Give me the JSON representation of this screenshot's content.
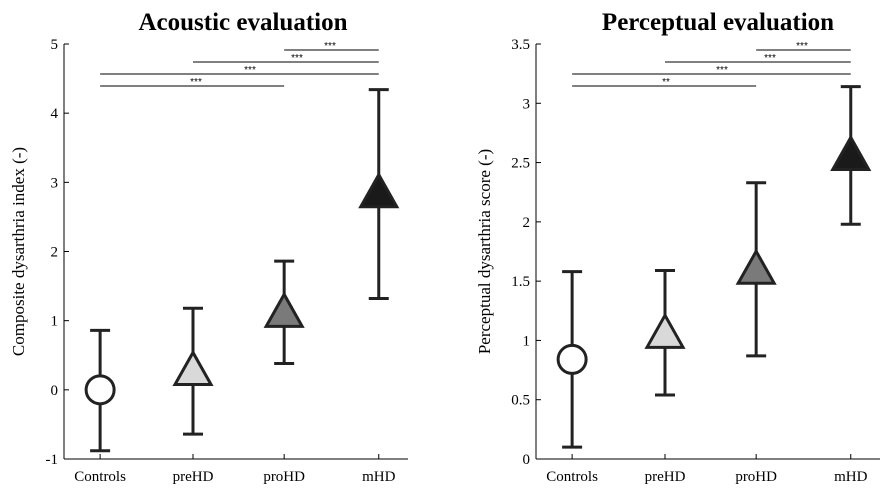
{
  "chart_data": [
    {
      "type": "scatter",
      "title": "Acoustic evaluation",
      "xlabel": "",
      "ylabel": "Composite dysarthria index (-)",
      "categories": [
        "Controls",
        "preHD",
        "proHD",
        "mHD"
      ],
      "ylim": [
        -1,
        5
      ],
      "yticks": [
        "-1",
        "0",
        "1",
        "2",
        "3",
        "4",
        "5"
      ],
      "series": [
        {
          "mean": [
            0.0,
            0.28,
            1.12,
            2.85
          ],
          "lower": [
            -0.88,
            -0.64,
            0.38,
            1.32
          ],
          "upper": [
            0.86,
            1.18,
            1.86,
            4.34
          ],
          "markers": [
            "circle",
            "triangle",
            "triangle",
            "triangle"
          ],
          "fills": [
            "#ffffff",
            "#d9d9d9",
            "#7a7a7a",
            "#1a1a1a"
          ]
        }
      ],
      "significance": [
        {
          "from": "Controls",
          "to": "proHD",
          "label": "***"
        },
        {
          "from": "Controls",
          "to": "mHD",
          "label": "***"
        },
        {
          "from": "preHD",
          "to": "mHD",
          "label": "***"
        },
        {
          "from": "proHD",
          "to": "mHD",
          "label": "***"
        }
      ],
      "grid": false
    },
    {
      "type": "scatter",
      "title": "Perceptual evaluation",
      "xlabel": "",
      "ylabel": "Perceptual dysarthria score (-)",
      "categories": [
        "Controls",
        "preHD",
        "proHD",
        "mHD"
      ],
      "ylim": [
        0,
        3.5
      ],
      "yticks": [
        "0",
        "0.5",
        "1",
        "1.5",
        "2",
        "2.5",
        "3",
        "3.5"
      ],
      "series": [
        {
          "mean": [
            0.84,
            1.06,
            1.6,
            2.56
          ],
          "lower": [
            0.1,
            0.54,
            0.87,
            1.98
          ],
          "upper": [
            1.58,
            1.59,
            2.33,
            3.14
          ],
          "markers": [
            "circle",
            "triangle",
            "triangle",
            "triangle"
          ],
          "fills": [
            "#ffffff",
            "#d9d9d9",
            "#7a7a7a",
            "#1a1a1a"
          ]
        }
      ],
      "significance": [
        {
          "from": "Controls",
          "to": "proHD",
          "label": "**"
        },
        {
          "from": "Controls",
          "to": "mHD",
          "label": "***"
        },
        {
          "from": "preHD",
          "to": "mHD",
          "label": "***"
        },
        {
          "from": "proHD",
          "to": "mHD",
          "label": "***"
        }
      ],
      "grid": false
    }
  ]
}
